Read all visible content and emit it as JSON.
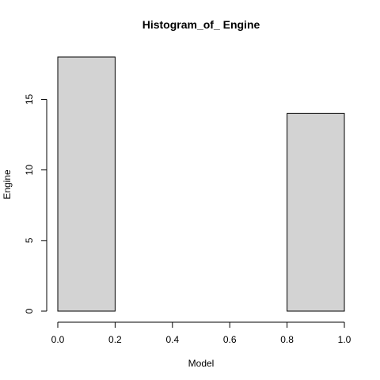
{
  "chart_data": {
    "type": "bar",
    "title": "Histogram_of_ Engine",
    "xlabel": "Model",
    "ylabel": "Engine",
    "bins": [
      {
        "x0": 0.0,
        "x1": 0.2,
        "count": 18
      },
      {
        "x0": 0.2,
        "x1": 0.4,
        "count": 0
      },
      {
        "x0": 0.4,
        "x1": 0.6,
        "count": 0
      },
      {
        "x0": 0.6,
        "x1": 0.8,
        "count": 0
      },
      {
        "x0": 0.8,
        "x1": 1.0,
        "count": 14
      }
    ],
    "xlim": [
      0,
      1
    ],
    "ylim": [
      0,
      18
    ],
    "x_ticks": [
      "0.0",
      "0.2",
      "0.4",
      "0.6",
      "0.8",
      "1.0"
    ],
    "y_ticks": [
      "0",
      "5",
      "10",
      "15"
    ],
    "bar_color": "#d3d3d3",
    "grid": false
  }
}
